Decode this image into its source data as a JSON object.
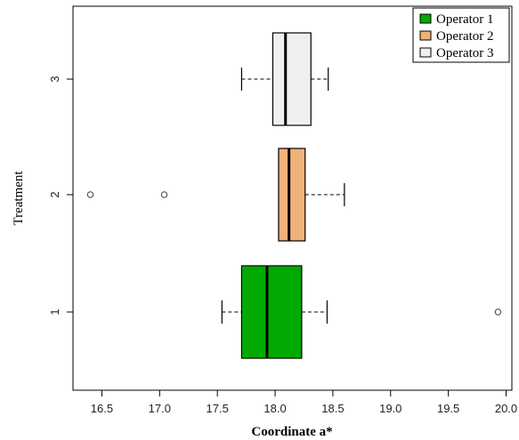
{
  "chart_data": {
    "type": "boxplot",
    "orientation": "horizontal",
    "xlabel": "Coordinate a*",
    "ylabel": "Treatment",
    "xlim": [
      16.25,
      20.05
    ],
    "xticks": [
      16.5,
      17.0,
      17.5,
      18.0,
      18.5,
      19.0,
      19.5,
      20.0
    ],
    "categories": [
      "1",
      "2",
      "3"
    ],
    "legend_position": "top-right",
    "grid": false,
    "series": [
      {
        "name": "Operator 1",
        "category": "1",
        "color": "#00aa00",
        "whisker_low": 17.54,
        "q1": 17.71,
        "median": 17.93,
        "q3": 18.23,
        "whisker_high": 18.45,
        "outliers": [
          19.93
        ]
      },
      {
        "name": "Operator 2",
        "category": "2",
        "color": "#f0b27a",
        "whisker_low": 18.03,
        "q1": 18.03,
        "median": 18.12,
        "q3": 18.26,
        "whisker_high": 18.6,
        "outliers": [
          16.4,
          17.04
        ]
      },
      {
        "name": "Operator 3",
        "category": "3",
        "color": "#f0f0f0",
        "whisker_low": 17.71,
        "q1": 17.98,
        "median": 18.09,
        "q3": 18.31,
        "whisker_high": 18.46,
        "outliers": []
      }
    ]
  }
}
